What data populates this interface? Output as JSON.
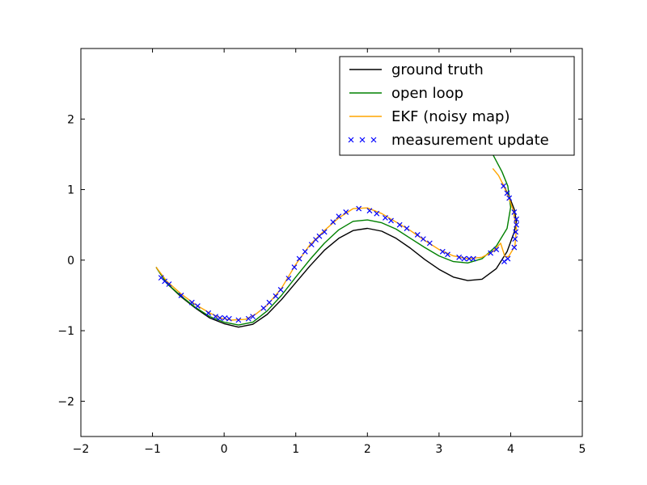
{
  "chart_data": {
    "type": "line",
    "title": "",
    "xlabel": "",
    "ylabel": "",
    "xlim": [
      -2,
      5
    ],
    "ylim": [
      -2.5,
      3.0
    ],
    "grid": false,
    "legend_position": "top-right",
    "x_ticks": [
      {
        "value": -2,
        "label": "−2"
      },
      {
        "value": -1,
        "label": "−1"
      },
      {
        "value": 0,
        "label": "0"
      },
      {
        "value": 1,
        "label": "1"
      },
      {
        "value": 2,
        "label": "2"
      },
      {
        "value": 3,
        "label": "3"
      },
      {
        "value": 4,
        "label": "4"
      },
      {
        "value": 5,
        "label": "5"
      }
    ],
    "y_ticks": [
      {
        "value": -2,
        "label": "−2"
      },
      {
        "value": -1,
        "label": "−1"
      },
      {
        "value": 0,
        "label": "0"
      },
      {
        "value": 1,
        "label": "1"
      },
      {
        "value": 2,
        "label": "2"
      }
    ],
    "series": [
      {
        "name": "ground truth",
        "style": "line",
        "color": "#000000",
        "points": [
          [
            -0.95,
            -0.1
          ],
          [
            -0.8,
            -0.33
          ],
          [
            -0.6,
            -0.52
          ],
          [
            -0.4,
            -0.68
          ],
          [
            -0.2,
            -0.82
          ],
          [
            0.0,
            -0.9
          ],
          [
            0.2,
            -0.95
          ],
          [
            0.4,
            -0.91
          ],
          [
            0.6,
            -0.77
          ],
          [
            0.8,
            -0.56
          ],
          [
            1.0,
            -0.32
          ],
          [
            1.2,
            -0.08
          ],
          [
            1.4,
            0.14
          ],
          [
            1.6,
            0.31
          ],
          [
            1.8,
            0.42
          ],
          [
            2.0,
            0.45
          ],
          [
            2.2,
            0.41
          ],
          [
            2.4,
            0.31
          ],
          [
            2.6,
            0.17
          ],
          [
            2.8,
            0.01
          ],
          [
            3.0,
            -0.13
          ],
          [
            3.2,
            -0.24
          ],
          [
            3.4,
            -0.29
          ],
          [
            3.6,
            -0.27
          ],
          [
            3.8,
            -0.12
          ],
          [
            3.95,
            0.12
          ],
          [
            4.05,
            0.4
          ],
          [
            4.08,
            0.55
          ],
          [
            4.05,
            0.72
          ],
          [
            3.98,
            0.9
          ],
          [
            3.88,
            1.1
          ]
        ]
      },
      {
        "name": "open loop",
        "style": "line",
        "color": "#008000",
        "points": [
          [
            -0.95,
            -0.1
          ],
          [
            -0.8,
            -0.33
          ],
          [
            -0.6,
            -0.51
          ],
          [
            -0.4,
            -0.67
          ],
          [
            -0.2,
            -0.8
          ],
          [
            0.0,
            -0.88
          ],
          [
            0.2,
            -0.92
          ],
          [
            0.4,
            -0.88
          ],
          [
            0.6,
            -0.72
          ],
          [
            0.8,
            -0.5
          ],
          [
            1.0,
            -0.24
          ],
          [
            1.2,
            0.01
          ],
          [
            1.4,
            0.24
          ],
          [
            1.6,
            0.43
          ],
          [
            1.8,
            0.55
          ],
          [
            2.0,
            0.57
          ],
          [
            2.2,
            0.53
          ],
          [
            2.4,
            0.44
          ],
          [
            2.6,
            0.31
          ],
          [
            2.8,
            0.18
          ],
          [
            3.0,
            0.06
          ],
          [
            3.2,
            -0.02
          ],
          [
            3.4,
            -0.04
          ],
          [
            3.6,
            0.02
          ],
          [
            3.8,
            0.2
          ],
          [
            3.95,
            0.45
          ],
          [
            4.0,
            0.75
          ],
          [
            3.96,
            1.05
          ],
          [
            3.88,
            1.25
          ],
          [
            3.75,
            1.5
          ],
          [
            3.65,
            1.7
          ]
        ]
      },
      {
        "name": "EKF (noisy map)",
        "style": "line",
        "color": "#FFA500",
        "points": [
          [
            -0.95,
            -0.1
          ],
          [
            -0.8,
            -0.3
          ],
          [
            -0.6,
            -0.48
          ],
          [
            -0.4,
            -0.63
          ],
          [
            -0.2,
            -0.75
          ],
          [
            -0.05,
            -0.82
          ],
          [
            0.1,
            -0.85
          ],
          [
            0.3,
            -0.84
          ],
          [
            0.45,
            -0.76
          ],
          [
            0.6,
            -0.64
          ],
          [
            0.8,
            -0.4
          ],
          [
            1.0,
            -0.06
          ],
          [
            1.2,
            0.22
          ],
          [
            1.4,
            0.42
          ],
          [
            1.6,
            0.6
          ],
          [
            1.8,
            0.73
          ],
          [
            2.0,
            0.74
          ],
          [
            2.2,
            0.66
          ],
          [
            2.4,
            0.54
          ],
          [
            2.6,
            0.42
          ],
          [
            2.8,
            0.28
          ],
          [
            3.0,
            0.15
          ],
          [
            3.2,
            0.06
          ],
          [
            3.4,
            0.02
          ],
          [
            3.6,
            0.04
          ],
          [
            3.75,
            0.12
          ],
          [
            3.86,
            0.24
          ],
          [
            3.92,
            0.05
          ],
          [
            3.97,
            0.05
          ],
          [
            4.06,
            0.2
          ],
          [
            4.08,
            0.45
          ],
          [
            4.03,
            0.72
          ],
          [
            3.97,
            0.9
          ],
          [
            3.88,
            1.1
          ],
          [
            3.83,
            1.2
          ],
          [
            3.75,
            1.3
          ]
        ]
      },
      {
        "name": "measurement update",
        "style": "marker-x",
        "color": "#0000ff",
        "points": [
          [
            -0.88,
            -0.25
          ],
          [
            -0.83,
            -0.3
          ],
          [
            -0.77,
            -0.34
          ],
          [
            -0.6,
            -0.5
          ],
          [
            -0.45,
            -0.6
          ],
          [
            -0.37,
            -0.65
          ],
          [
            -0.22,
            -0.75
          ],
          [
            -0.12,
            -0.8
          ],
          [
            -0.06,
            -0.82
          ],
          [
            0.01,
            -0.82
          ],
          [
            0.07,
            -0.83
          ],
          [
            0.2,
            -0.85
          ],
          [
            0.34,
            -0.83
          ],
          [
            0.4,
            -0.8
          ],
          [
            0.55,
            -0.68
          ],
          [
            0.63,
            -0.6
          ],
          [
            0.72,
            -0.51
          ],
          [
            0.79,
            -0.42
          ],
          [
            0.9,
            -0.26
          ],
          [
            0.98,
            -0.1
          ],
          [
            1.05,
            0.02
          ],
          [
            1.13,
            0.12
          ],
          [
            1.22,
            0.22
          ],
          [
            1.28,
            0.29
          ],
          [
            1.33,
            0.34
          ],
          [
            1.4,
            0.4
          ],
          [
            1.52,
            0.54
          ],
          [
            1.6,
            0.62
          ],
          [
            1.7,
            0.68
          ],
          [
            1.88,
            0.73
          ],
          [
            2.03,
            0.7
          ],
          [
            2.13,
            0.66
          ],
          [
            2.25,
            0.6
          ],
          [
            2.33,
            0.56
          ],
          [
            2.45,
            0.5
          ],
          [
            2.55,
            0.45
          ],
          [
            2.7,
            0.36
          ],
          [
            2.78,
            0.3
          ],
          [
            2.87,
            0.24
          ],
          [
            3.05,
            0.12
          ],
          [
            3.12,
            0.08
          ],
          [
            3.28,
            0.04
          ],
          [
            3.35,
            0.02
          ],
          [
            3.42,
            0.02
          ],
          [
            3.48,
            0.02
          ],
          [
            3.72,
            0.1
          ],
          [
            3.8,
            0.15
          ],
          [
            3.91,
            -0.02
          ],
          [
            3.96,
            0.02
          ],
          [
            4.05,
            0.18
          ],
          [
            4.06,
            0.3
          ],
          [
            4.07,
            0.4
          ],
          [
            4.08,
            0.5
          ],
          [
            4.08,
            0.58
          ],
          [
            4.05,
            0.68
          ],
          [
            3.98,
            0.88
          ],
          [
            3.95,
            0.95
          ],
          [
            3.9,
            1.05
          ]
        ]
      }
    ]
  }
}
